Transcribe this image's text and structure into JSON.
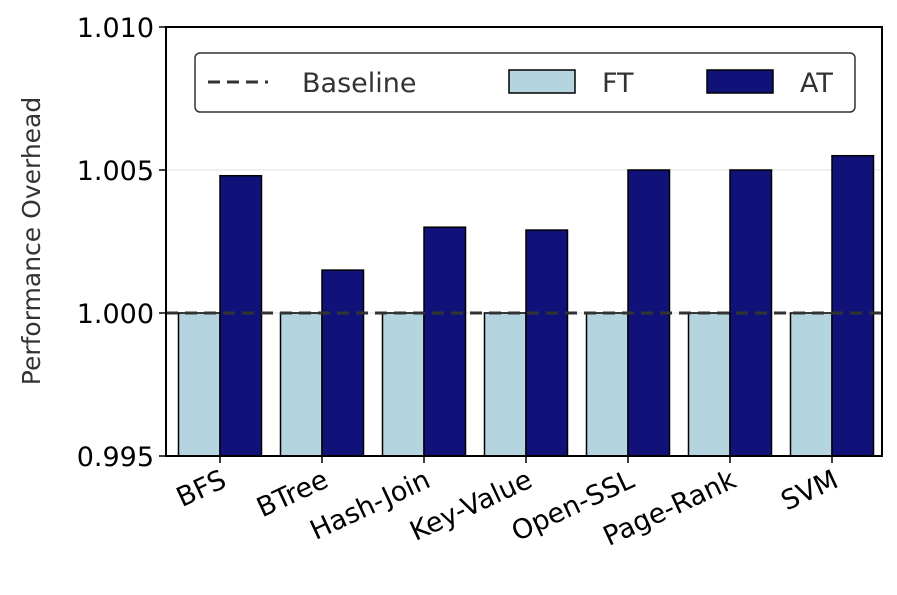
{
  "chart_data": {
    "type": "bar",
    "title": "",
    "xlabel": "",
    "ylabel": "Performance Overhead",
    "ylim": [
      0.995,
      1.01
    ],
    "yticks": [
      "0.995",
      "1.000",
      "1.005",
      "1.010"
    ],
    "grid": "horizontal, light",
    "legend_placement": "top",
    "categories": [
      "BFS",
      "BTree",
      "Hash-Join",
      "Key-Value",
      "Open-SSL",
      "Page-Rank",
      "SVM"
    ],
    "series": [
      {
        "name": "FT",
        "color": "#b4d5e0",
        "values": [
          1.0,
          1.0,
          1.0,
          1.0,
          1.0,
          1.0,
          1.0
        ]
      },
      {
        "name": "AT",
        "color": "#10127a",
        "values": [
          1.0048,
          1.0015,
          1.003,
          1.0029,
          1.005,
          1.005,
          1.0055
        ]
      }
    ],
    "baseline": {
      "name": "Baseline",
      "value": 1.0,
      "style": "dashed",
      "color": "#333333"
    }
  }
}
